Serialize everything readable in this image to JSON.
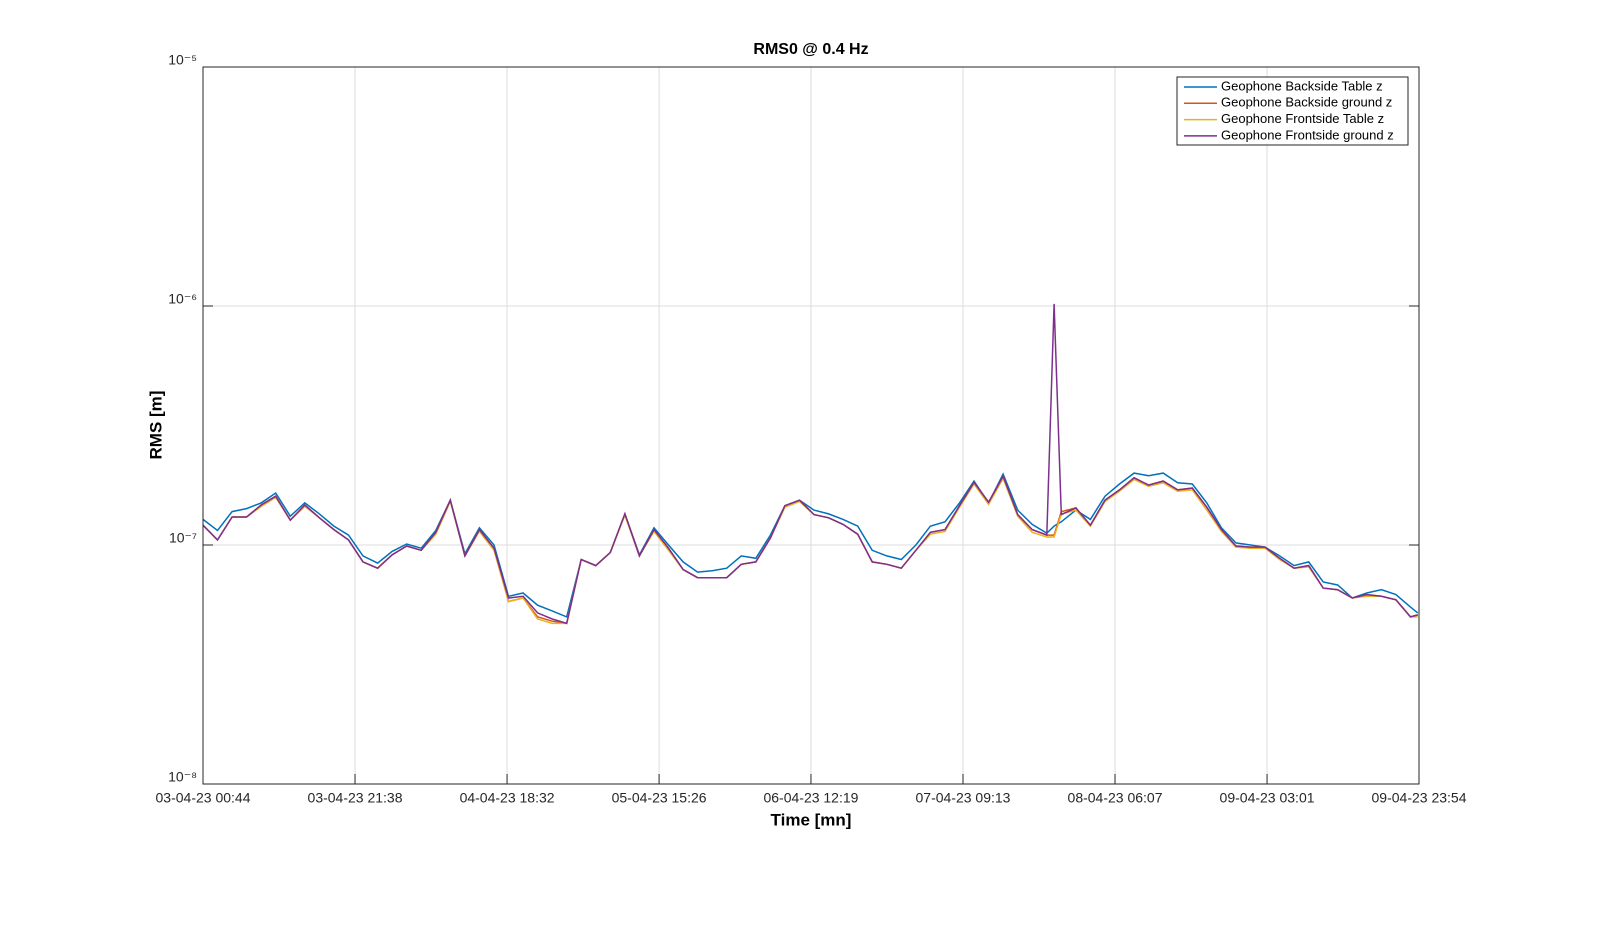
{
  "chart_data": {
    "type": "line",
    "title": "RMS0 @ 0.4 Hz",
    "xlabel": "Time [mn]",
    "ylabel": "RMS [m]",
    "yscale": "log",
    "grid": true,
    "legend": "upper right",
    "xlim": [
      0,
      167.17
    ],
    "xticks": [
      {
        "value": 0,
        "label": "03-04-23 00:44"
      },
      {
        "value": 20.9,
        "label": "03-04-23 21:38"
      },
      {
        "value": 41.8,
        "label": "04-04-23 18:32"
      },
      {
        "value": 62.7,
        "label": "05-04-23 15:26"
      },
      {
        "value": 83.58,
        "label": "06-04-23 12:19"
      },
      {
        "value": 104.48,
        "label": "07-04-23 09:13"
      },
      {
        "value": 125.38,
        "label": "08-04-23 06:07"
      },
      {
        "value": 146.28,
        "label": "09-04-23 03:01"
      },
      {
        "value": 167.17,
        "label": "09-04-23 23:54"
      }
    ],
    "ylim": [
      1e-08,
      1e-05
    ],
    "yticks": [
      {
        "value": 1e-08,
        "label": "10⁻⁸"
      },
      {
        "value": 1e-07,
        "label": "10⁻⁷"
      },
      {
        "value": 1e-06,
        "label": "10⁻⁶"
      },
      {
        "value": 1e-05,
        "label": "10⁻⁵"
      }
    ],
    "x": [
      0,
      2,
      4,
      6,
      8,
      10,
      12,
      14,
      16,
      18,
      20,
      22,
      24,
      26,
      28,
      30,
      32,
      34,
      36,
      38,
      40,
      42,
      44,
      46,
      48,
      50,
      52,
      54,
      56,
      58,
      60,
      62,
      64,
      66,
      68,
      70,
      72,
      74,
      76,
      78,
      80,
      82,
      84,
      86,
      88,
      90,
      92,
      94,
      96,
      98,
      100,
      102,
      104,
      106,
      108,
      110,
      112,
      114,
      116,
      117,
      118,
      120,
      122,
      124,
      126,
      128,
      130,
      132,
      134,
      136,
      138,
      140,
      142,
      144,
      146,
      148,
      150,
      152,
      154,
      156,
      158,
      160,
      162,
      164,
      166,
      167
    ],
    "series": [
      {
        "name": "Geophone Backside Table z",
        "color": "#0072BD",
        "values": [
          1.28e-07,
          1.15e-07,
          1.38e-07,
          1.42e-07,
          1.5e-07,
          1.65e-07,
          1.32e-07,
          1.5e-07,
          1.35e-07,
          1.2e-07,
          1.1e-07,
          9e-08,
          8.4e-08,
          9.4e-08,
          1.01e-07,
          9.7e-08,
          1.15e-07,
          1.54e-07,
          9.2e-08,
          1.18e-07,
          1e-07,
          6.1e-08,
          6.3e-08,
          5.6e-08,
          5.3e-08,
          5e-08,
          8.7e-08,
          8.2e-08,
          9.3e-08,
          1.35e-07,
          9.1e-08,
          1.18e-07,
          1e-07,
          8.5e-08,
          7.7e-08,
          7.8e-08,
          8e-08,
          9e-08,
          8.8e-08,
          1.1e-07,
          1.46e-07,
          1.54e-07,
          1.4e-07,
          1.35e-07,
          1.28e-07,
          1.2e-07,
          9.5e-08,
          9e-08,
          8.7e-08,
          1e-07,
          1.2e-07,
          1.25e-07,
          1.5e-07,
          1.85e-07,
          1.5e-07,
          1.98e-07,
          1.4e-07,
          1.22e-07,
          1.12e-07,
          1.2e-07,
          1.25e-07,
          1.4e-07,
          1.28e-07,
          1.6e-07,
          1.8e-07,
          2e-07,
          1.95e-07,
          2e-07,
          1.82e-07,
          1.8e-07,
          1.5e-07,
          1.18e-07,
          1.02e-07,
          1e-07,
          9.8e-08,
          9e-08,
          8.2e-08,
          8.5e-08,
          7e-08,
          6.8e-08,
          6e-08,
          6.3e-08,
          6.5e-08,
          6.2e-08,
          5.5e-08,
          5.2e-08
        ]
      },
      {
        "name": "Geophone Backside ground z",
        "color": "#D95319",
        "values": [
          1.21e-07,
          1.05e-07,
          1.31e-07,
          1.31e-07,
          1.47e-07,
          1.6e-07,
          1.27e-07,
          1.47e-07,
          1.3e-07,
          1.16e-07,
          1.05e-07,
          8.5e-08,
          8e-08,
          9.1e-08,
          9.9e-08,
          9.5e-08,
          1.13e-07,
          1.54e-07,
          9e-08,
          1.16e-07,
          9.7e-08,
          5.8e-08,
          6e-08,
          5e-08,
          4.8e-08,
          4.7e-08,
          8.7e-08,
          8.2e-08,
          9.3e-08,
          1.35e-07,
          9e-08,
          1.16e-07,
          9.7e-08,
          7.9e-08,
          7.3e-08,
          7.3e-08,
          7.3e-08,
          8.3e-08,
          8.5e-08,
          1.07e-07,
          1.46e-07,
          1.54e-07,
          1.34e-07,
          1.3e-07,
          1.22e-07,
          1.11e-07,
          8.5e-08,
          8.3e-08,
          8e-08,
          9.5e-08,
          1.13e-07,
          1.16e-07,
          1.46e-07,
          1.83e-07,
          1.51e-07,
          1.94e-07,
          1.34e-07,
          1.16e-07,
          1.1e-07,
          1.1e-07,
          1.38e-07,
          1.43e-07,
          1.21e-07,
          1.54e-07,
          1.7e-07,
          1.91e-07,
          1.78e-07,
          1.85e-07,
          1.7e-07,
          1.73e-07,
          1.44e-07,
          1.16e-07,
          9.9e-08,
          9.8e-08,
          9.8e-08,
          8.8e-08,
          8e-08,
          8.2e-08,
          6.6e-08,
          6.5e-08,
          6e-08,
          6.2e-08,
          6.1e-08,
          5.9e-08,
          5e-08,
          5.1e-08
        ]
      },
      {
        "name": "Geophone Frontside Table z",
        "color": "#EDB120",
        "values": [
          1.21e-07,
          1.05e-07,
          1.31e-07,
          1.31e-07,
          1.45e-07,
          1.58e-07,
          1.27e-07,
          1.45e-07,
          1.3e-07,
          1.16e-07,
          1.05e-07,
          8.5e-08,
          8e-08,
          9.1e-08,
          9.9e-08,
          9.5e-08,
          1.11e-07,
          1.52e-07,
          9e-08,
          1.14e-07,
          9.5e-08,
          5.8e-08,
          6e-08,
          4.9e-08,
          4.7e-08,
          4.7e-08,
          8.7e-08,
          8.2e-08,
          9.3e-08,
          1.33e-07,
          9e-08,
          1.14e-07,
          9.5e-08,
          7.9e-08,
          7.3e-08,
          7.3e-08,
          7.3e-08,
          8.3e-08,
          8.5e-08,
          1.07e-07,
          1.44e-07,
          1.52e-07,
          1.34e-07,
          1.3e-07,
          1.22e-07,
          1.11e-07,
          8.5e-08,
          8.3e-08,
          8e-08,
          9.5e-08,
          1.11e-07,
          1.14e-07,
          1.44e-07,
          1.8e-07,
          1.48e-07,
          1.9e-07,
          1.32e-07,
          1.13e-07,
          1.08e-07,
          1.08e-07,
          1.35e-07,
          1.4e-07,
          1.2e-07,
          1.52e-07,
          1.68e-07,
          1.88e-07,
          1.76e-07,
          1.82e-07,
          1.68e-07,
          1.7e-07,
          1.4e-07,
          1.14e-07,
          9.8e-08,
          9.7e-08,
          9.7e-08,
          8.7e-08,
          8e-08,
          8.1e-08,
          6.6e-08,
          6.5e-08,
          6e-08,
          6.1e-08,
          6.1e-08,
          5.9e-08,
          5e-08,
          5e-08
        ]
      },
      {
        "name": "Geophone Frontside ground z",
        "color": "#7E2F8E",
        "values": [
          1.21e-07,
          1.05e-07,
          1.31e-07,
          1.31e-07,
          1.47e-07,
          1.6e-07,
          1.27e-07,
          1.47e-07,
          1.3e-07,
          1.16e-07,
          1.05e-07,
          8.5e-08,
          8e-08,
          9.1e-08,
          9.9e-08,
          9.5e-08,
          1.13e-07,
          1.54e-07,
          9e-08,
          1.16e-07,
          9.7e-08,
          6e-08,
          6.1e-08,
          5.2e-08,
          4.9e-08,
          4.7e-08,
          8.7e-08,
          8.2e-08,
          9.3e-08,
          1.35e-07,
          9e-08,
          1.16e-07,
          9.7e-08,
          7.9e-08,
          7.3e-08,
          7.3e-08,
          7.3e-08,
          8.3e-08,
          8.5e-08,
          1.07e-07,
          1.46e-07,
          1.54e-07,
          1.34e-07,
          1.3e-07,
          1.22e-07,
          1.11e-07,
          8.5e-08,
          8.3e-08,
          8e-08,
          9.5e-08,
          1.13e-07,
          1.16e-07,
          1.46e-07,
          1.83e-07,
          1.51e-07,
          1.94e-07,
          1.34e-07,
          1.16e-07,
          1.1e-07,
          1.02e-06,
          1.34e-07,
          1.43e-07,
          1.21e-07,
          1.54e-07,
          1.7e-07,
          1.91e-07,
          1.78e-07,
          1.85e-07,
          1.7e-07,
          1.73e-07,
          1.44e-07,
          1.16e-07,
          9.9e-08,
          9.8e-08,
          9.8e-08,
          8.8e-08,
          8e-08,
          8.2e-08,
          6.6e-08,
          6.5e-08,
          6e-08,
          6.2e-08,
          6.1e-08,
          5.9e-08,
          5e-08,
          5.1e-08
        ]
      }
    ]
  }
}
